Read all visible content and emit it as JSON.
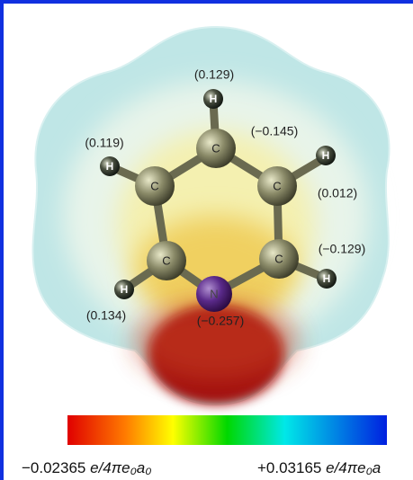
{
  "molecule": {
    "atoms": [
      {
        "symbol": "C"
      },
      {
        "symbol": "C"
      },
      {
        "symbol": "C"
      },
      {
        "symbol": "C"
      },
      {
        "symbol": "C"
      },
      {
        "symbol": "N"
      },
      {
        "symbol": "H"
      },
      {
        "symbol": "H"
      },
      {
        "symbol": "H"
      },
      {
        "symbol": "H"
      },
      {
        "symbol": "H"
      }
    ],
    "charges": [
      "(0.129)",
      "(−0.145)",
      "(0.119)",
      "(0.012)",
      "(−0.129)",
      "(0.134)",
      "(−0.257)"
    ]
  },
  "colorbar": {
    "min": {
      "value": "−0.02365",
      "unit": "e/4πe₀a₀"
    },
    "max": {
      "value": "+0.03165",
      "unit": "e/4πe₀a"
    }
  }
}
